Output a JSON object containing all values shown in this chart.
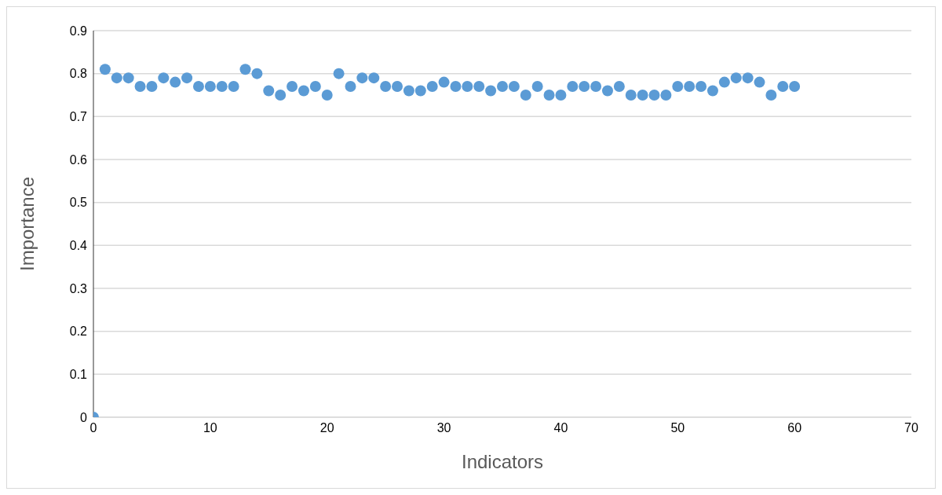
{
  "chart_data": {
    "type": "scatter",
    "xlabel": "Indicators",
    "ylabel": "Importance",
    "x": [
      0,
      1,
      2,
      3,
      4,
      5,
      6,
      7,
      8,
      9,
      10,
      11,
      12,
      13,
      14,
      15,
      16,
      17,
      18,
      19,
      20,
      21,
      22,
      23,
      24,
      25,
      26,
      27,
      28,
      29,
      30,
      31,
      32,
      33,
      34,
      35,
      36,
      37,
      38,
      39,
      40,
      41,
      42,
      43,
      44,
      45,
      46,
      47,
      48,
      49,
      50,
      51,
      52,
      53,
      54,
      55,
      56,
      57,
      58,
      59,
      60
    ],
    "series": [
      {
        "color": "#5b9bd5",
        "values": [
          0,
          0.81,
          0.79,
          0.79,
          0.77,
          0.77,
          0.79,
          0.78,
          0.79,
          0.77,
          0.77,
          0.77,
          0.77,
          0.81,
          0.8,
          0.76,
          0.75,
          0.77,
          0.76,
          0.77,
          0.75,
          0.8,
          0.77,
          0.79,
          0.79,
          0.77,
          0.77,
          0.76,
          0.76,
          0.77,
          0.78,
          0.77,
          0.77,
          0.77,
          0.76,
          0.77,
          0.77,
          0.75,
          0.77,
          0.75,
          0.75,
          0.77,
          0.77,
          0.77,
          0.76,
          0.77,
          0.75,
          0.75,
          0.75,
          0.75,
          0.77,
          0.77,
          0.77,
          0.76,
          0.78,
          0.79,
          0.79,
          0.78,
          0.75,
          0.77,
          0.77
        ]
      }
    ],
    "xlim": [
      0,
      70
    ],
    "xticks": [
      0,
      10,
      20,
      30,
      40,
      50,
      60,
      70
    ],
    "ylim": [
      0,
      0.9
    ],
    "yticks": [
      0,
      0.1,
      0.2,
      0.3,
      0.4,
      0.5,
      0.6,
      0.7,
      0.8,
      0.9
    ],
    "grid": "y",
    "marker": "circle",
    "legend": false
  }
}
